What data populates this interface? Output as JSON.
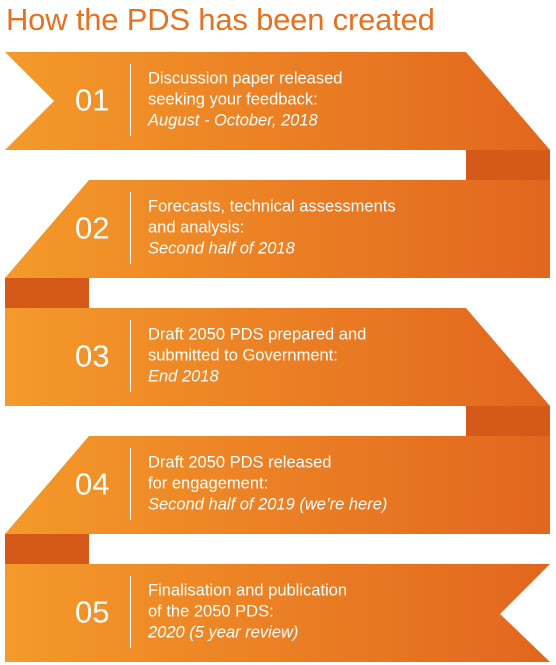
{
  "title": "How the PDS has been created",
  "colors": {
    "ribbon_light": "#f49a2a",
    "ribbon_dark": "#e2661e",
    "fold": "#d55a19",
    "title": "#e8711f",
    "text": "#ffffff"
  },
  "steps": [
    {
      "number": "01",
      "lines": [
        "Discussion paper released",
        "seeking your feedback:"
      ],
      "date": "August - October, 2018"
    },
    {
      "number": "02",
      "lines": [
        "Forecasts, technical assessments",
        "and analysis:"
      ],
      "date": "Second half of 2018"
    },
    {
      "number": "03",
      "lines": [
        "Draft 2050 PDS prepared and",
        "submitted to Government:"
      ],
      "date": "End 2018"
    },
    {
      "number": "04",
      "lines": [
        "Draft 2050 PDS released",
        "for engagement:"
      ],
      "date": "Second half of 2019 (we’re here)"
    },
    {
      "number": "05",
      "lines": [
        "Finalisation and publication",
        "of the 2050 PDS:"
      ],
      "date": "2020 (5 year review)"
    }
  ]
}
